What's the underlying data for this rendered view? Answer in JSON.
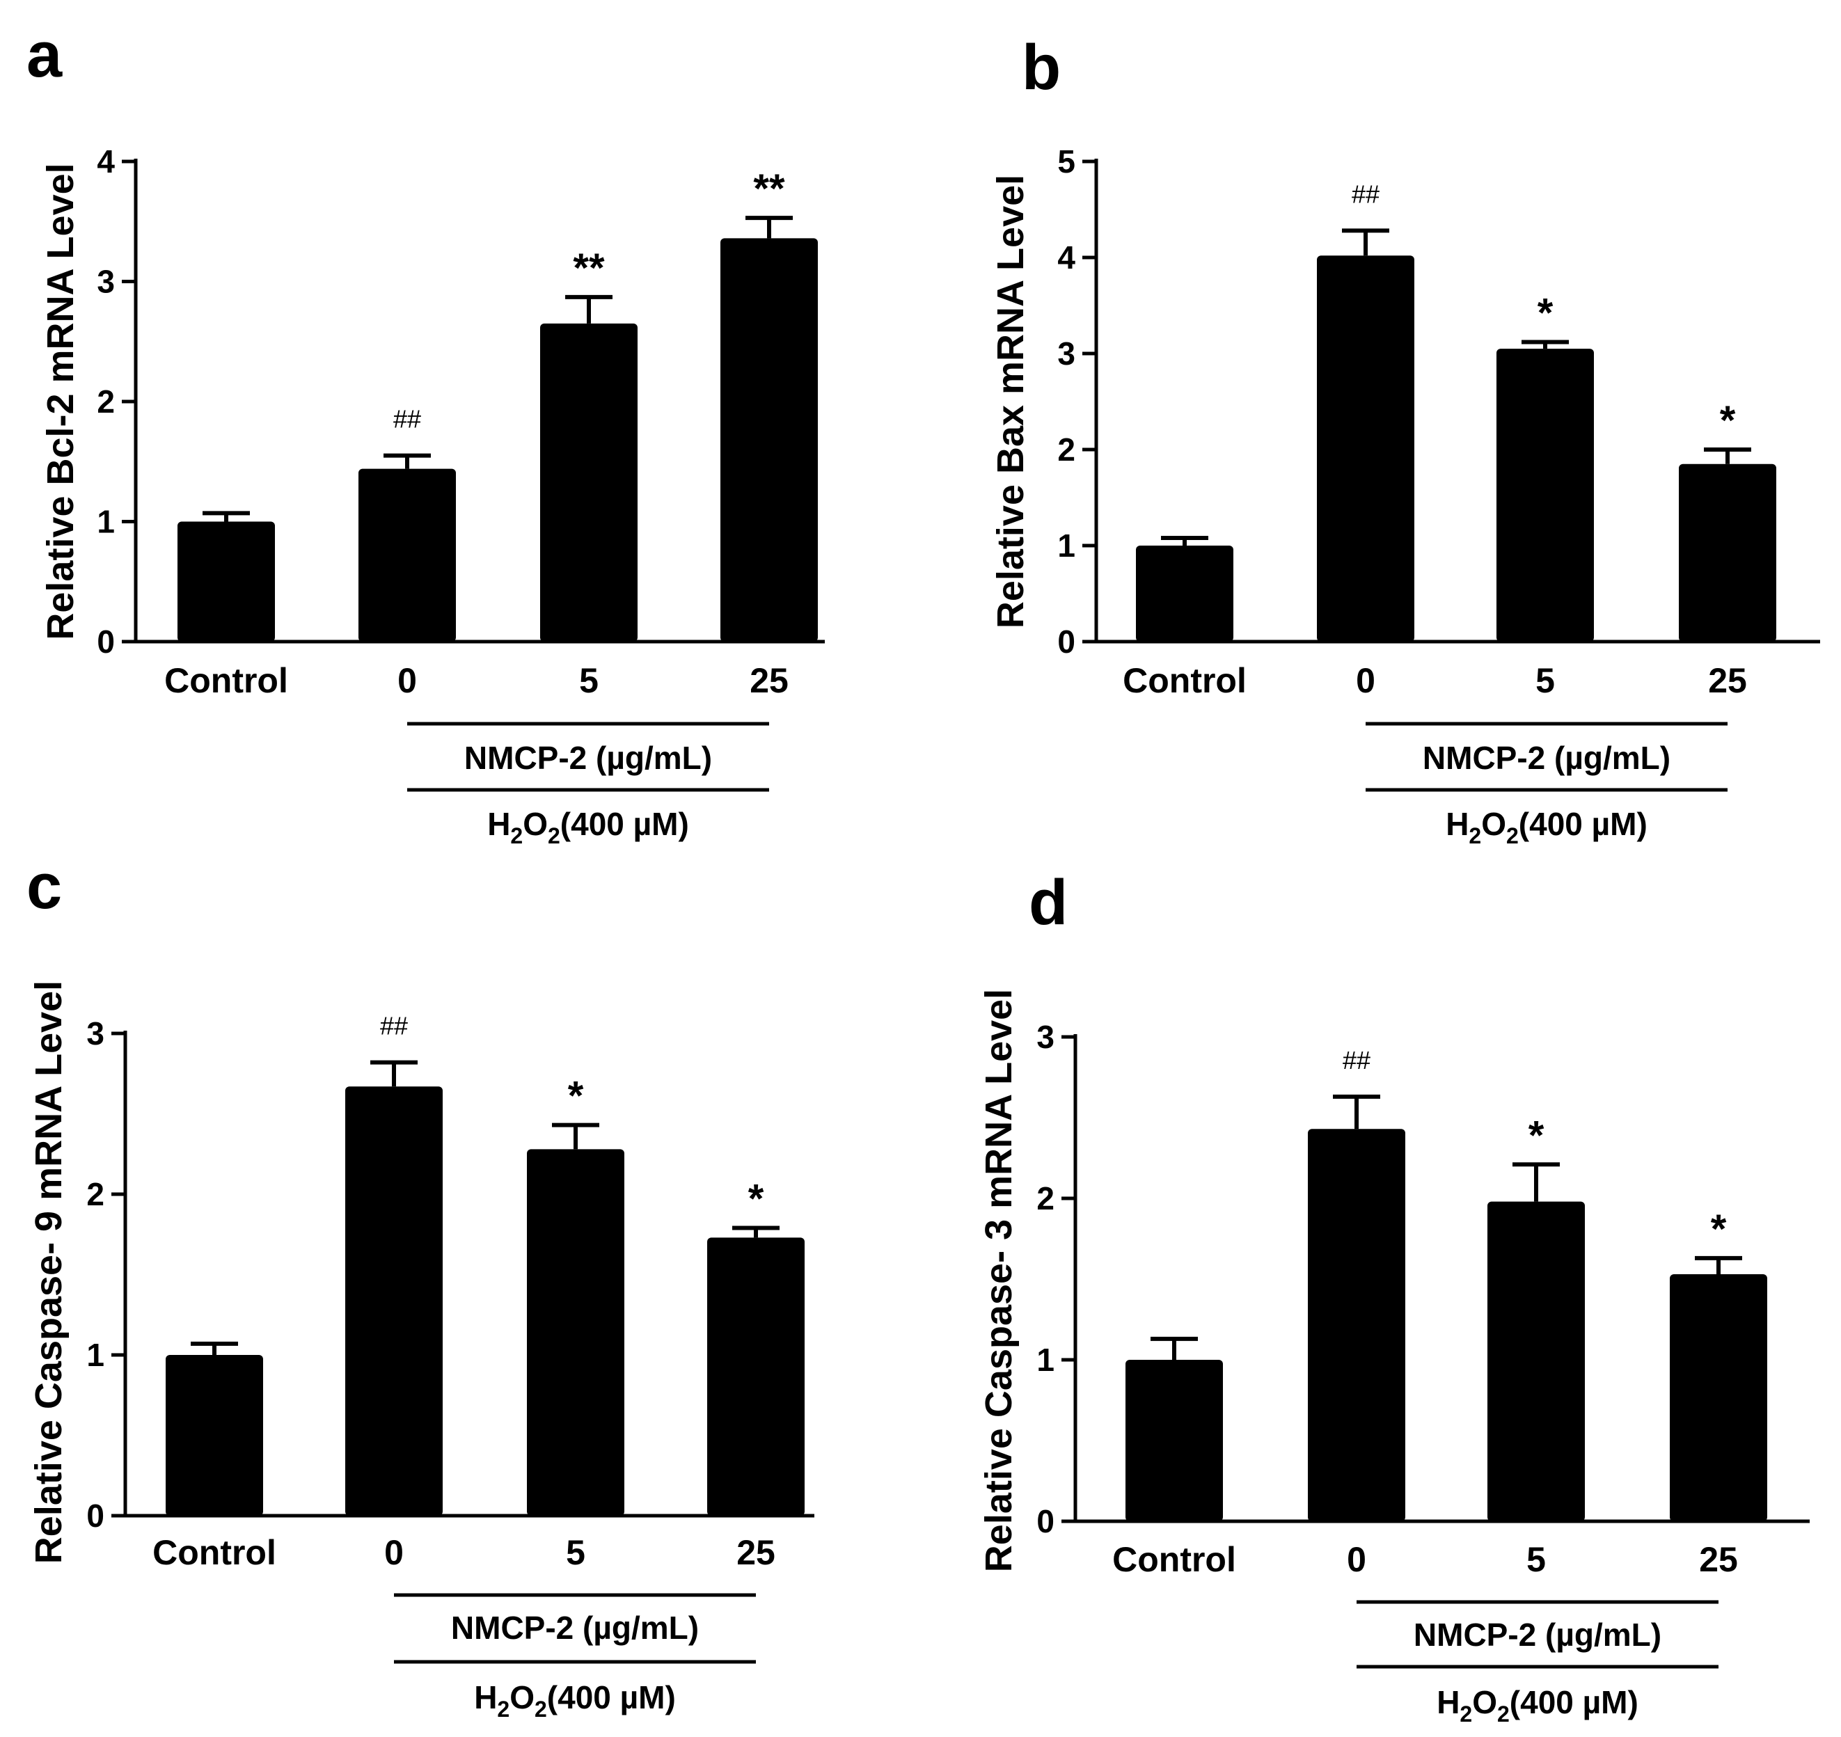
{
  "figure": {
    "group_treatment_label": "NMCP-2 (µg/mL)",
    "group_stress_prefix": "H",
    "group_stress_sub1": "2",
    "group_stress_mid": "O",
    "group_stress_sub2": "2",
    "group_stress_suffix": "(400 µM)"
  },
  "chart_data": [
    {
      "panel": "a",
      "type": "bar",
      "title": "",
      "ylabel": "Relative Bcl-2 mRNA Level",
      "xlabel": "",
      "categories": [
        "Control",
        "0",
        "5",
        "25"
      ],
      "values": [
        1.0,
        1.44,
        2.65,
        3.36
      ],
      "errors": [
        0.07,
        0.11,
        0.22,
        0.17
      ],
      "annotations": [
        "",
        "##",
        "**",
        "**"
      ],
      "ylim": [
        0,
        4
      ],
      "yticks": [
        "0",
        "1",
        "2",
        "3",
        "4"
      ]
    },
    {
      "panel": "b",
      "type": "bar",
      "title": "",
      "ylabel": "Relative Bax mRNA Level",
      "xlabel": "",
      "categories": [
        "Control",
        "0",
        "5",
        "25"
      ],
      "values": [
        1.0,
        4.02,
        3.05,
        1.85
      ],
      "errors": [
        0.08,
        0.26,
        0.07,
        0.15
      ],
      "annotations": [
        "",
        "##",
        "*",
        "*"
      ],
      "ylim": [
        0,
        5
      ],
      "yticks": [
        "0",
        "1",
        "2",
        "3",
        "4",
        "5"
      ]
    },
    {
      "panel": "c",
      "type": "bar",
      "title": "",
      "ylabel": "Relative Caspase- 9 mRNA Level",
      "xlabel": "",
      "categories": [
        "Control",
        "0",
        "5",
        "25"
      ],
      "values": [
        1.0,
        2.67,
        2.28,
        1.73
      ],
      "errors": [
        0.07,
        0.15,
        0.15,
        0.06
      ],
      "annotations": [
        "",
        "##",
        "*",
        "*"
      ],
      "ylim": [
        0,
        3
      ],
      "yticks": [
        "0",
        "1",
        "2",
        "3"
      ]
    },
    {
      "panel": "d",
      "type": "bar",
      "title": "",
      "ylabel": "Relative Caspase- 3 mRNA Level",
      "xlabel": "",
      "categories": [
        "Control",
        "0",
        "5",
        "25"
      ],
      "values": [
        1.0,
        2.43,
        1.98,
        1.53
      ],
      "errors": [
        0.13,
        0.2,
        0.23,
        0.1
      ],
      "annotations": [
        "",
        "##",
        "*",
        "*"
      ],
      "ylim": [
        0,
        3
      ],
      "yticks": [
        "0",
        "1",
        "2",
        "3"
      ]
    }
  ]
}
